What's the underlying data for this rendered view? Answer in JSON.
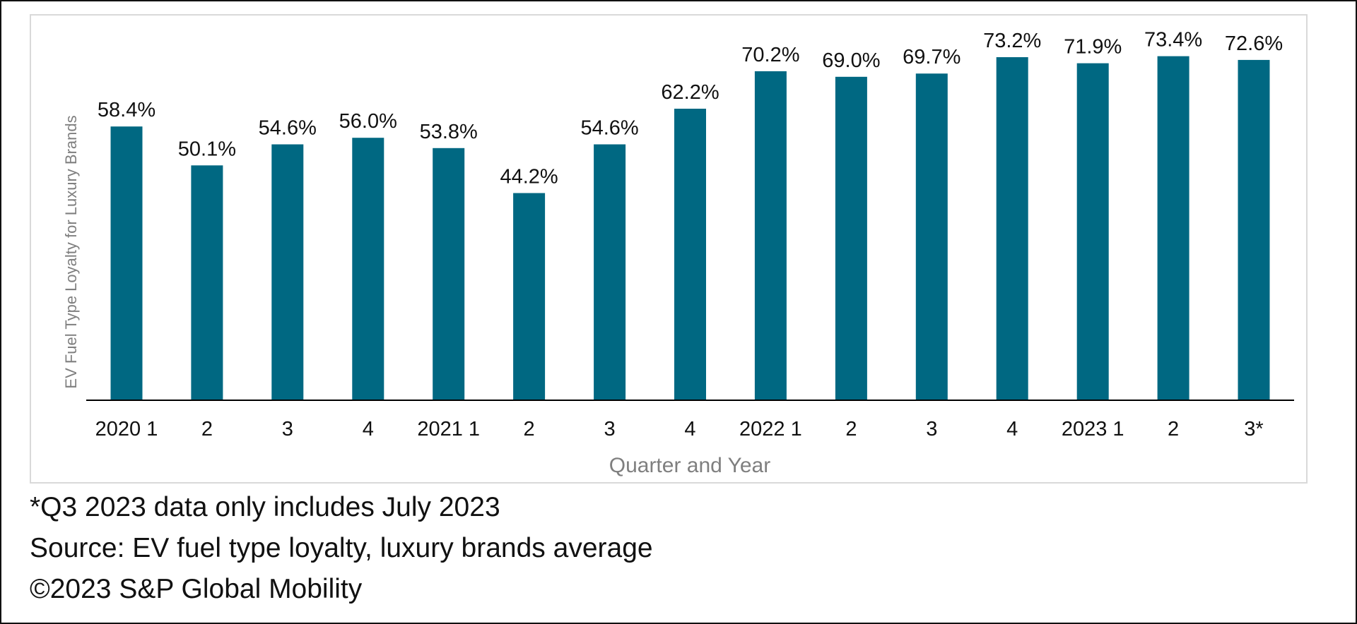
{
  "chart_data": {
    "type": "bar",
    "title": "",
    "xlabel": "Quarter and Year",
    "ylabel": "EV Fuel Type Loyalty for Luxury Brands",
    "categories": [
      "2020 1",
      "2",
      "3",
      "4",
      "2021 1",
      "2",
      "3",
      "4",
      "2022 1",
      "2",
      "3",
      "4",
      "2023 1",
      "2",
      "3*"
    ],
    "values": [
      58.4,
      50.1,
      54.6,
      56.0,
      53.8,
      44.2,
      54.6,
      62.2,
      70.2,
      69.0,
      69.7,
      73.2,
      71.9,
      73.4,
      72.6
    ],
    "data_labels": [
      "58.4%",
      "50.1%",
      "54.6%",
      "56.0%",
      "53.8%",
      "44.2%",
      "54.6%",
      "62.2%",
      "70.2%",
      "69.0%",
      "69.7%",
      "73.2%",
      "71.9%",
      "73.4%",
      "72.6%"
    ],
    "ylim": [
      0,
      80
    ],
    "grid": false,
    "legend": "none",
    "bar_color": "#006882"
  },
  "notes": {
    "footnote": "*Q3 2023 data only includes July 2023",
    "source": "Source: EV fuel type loyalty, luxury brands average",
    "copyright": "©2023 S&P Global Mobility"
  },
  "colors": {
    "bar": "#006882",
    "axis_title": "#7f7f7f",
    "text": "#111111",
    "axis_line": "#000000",
    "border": "#d9d9d9"
  }
}
